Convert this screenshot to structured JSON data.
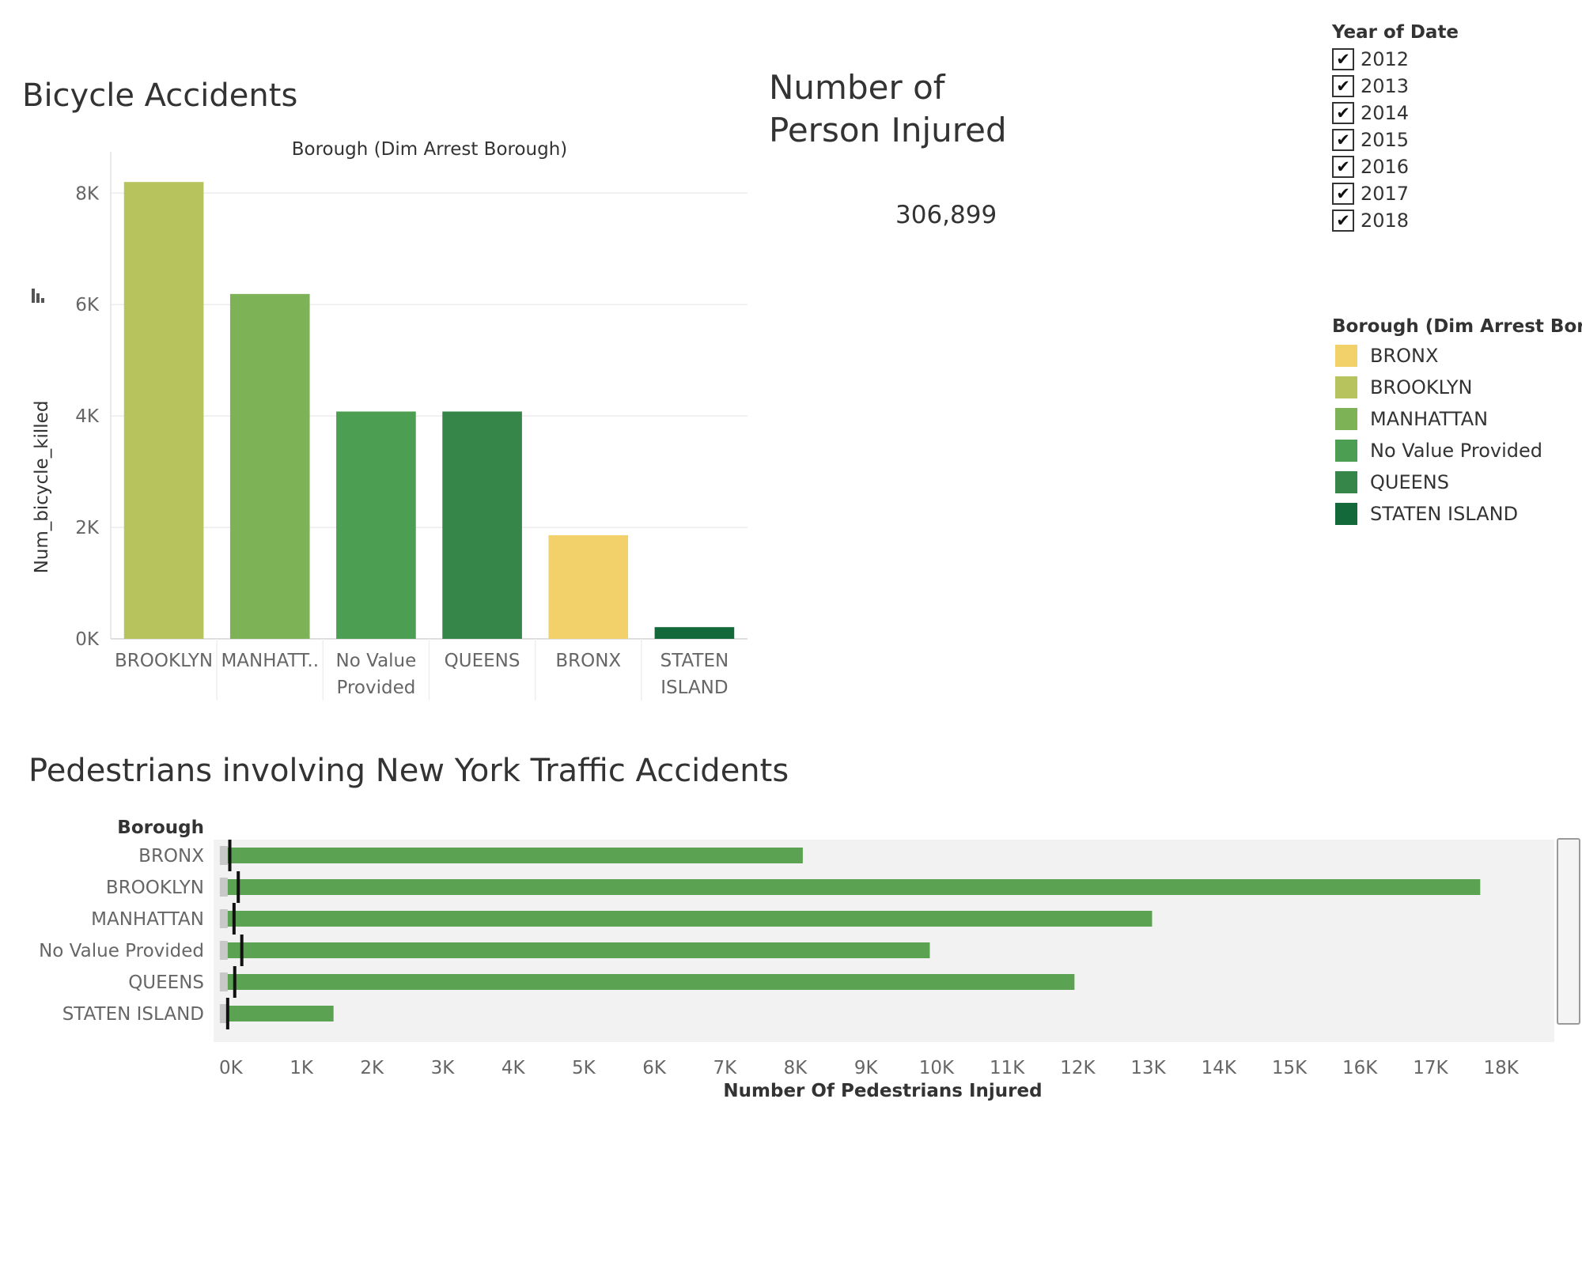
{
  "dashboard": {
    "bicycle_title": "Bicycle Accidents",
    "kpi_title_line1": "Number of",
    "kpi_title_line2": "Person Injured",
    "kpi_value": "306,899",
    "pedestrian_title": "Pedestrians involving New York Traffic Accidents"
  },
  "year_filter": {
    "title": "Year of Date",
    "check_icon": "check-icon",
    "items": [
      {
        "label": "2012",
        "checked": true
      },
      {
        "label": "2013",
        "checked": true
      },
      {
        "label": "2014",
        "checked": true
      },
      {
        "label": "2015",
        "checked": true
      },
      {
        "label": "2016",
        "checked": true
      },
      {
        "label": "2017",
        "checked": true
      },
      {
        "label": "2018",
        "checked": true
      }
    ]
  },
  "legend": {
    "title": "Borough (Dim Arrest Bor..",
    "items": [
      {
        "label": "BRONX",
        "color": "#f2d16b"
      },
      {
        "label": "BROOKLYN",
        "color": "#b7c35c"
      },
      {
        "label": "MANHATTAN",
        "color": "#7db257"
      },
      {
        "label": "No Value Provided",
        "color": "#4b9e52"
      },
      {
        "label": "QUEENS",
        "color": "#36864a"
      },
      {
        "label": "STATEN ISLAND",
        "color": "#13693a"
      }
    ]
  },
  "chart_data": [
    {
      "type": "bar",
      "title": "Bicycle Accidents",
      "column_header": "Borough (Dim Arrest Borough)",
      "ylabel": "Num_bicycle_killed",
      "sort_icon": "sort-descending-icon",
      "categories": [
        "BROOKLYN",
        "MANHATTAN",
        "No Value Provided",
        "QUEENS",
        "BRONX",
        "STATEN ISLAND"
      ],
      "category_labels": [
        [
          "BROOKLYN"
        ],
        [
          "MANHATT.."
        ],
        [
          "No Value",
          "Provided"
        ],
        [
          "QUEENS"
        ],
        [
          "BRONX"
        ],
        [
          "STATEN",
          "ISLAND"
        ]
      ],
      "values": [
        8200,
        6190,
        4080,
        4080,
        1860,
        210
      ],
      "colors": [
        "#b7c35c",
        "#7db257",
        "#4b9e52",
        "#36864a",
        "#f2d16b",
        "#13693a"
      ],
      "ylim": [
        0,
        8600
      ],
      "yticks": [
        0,
        2000,
        4000,
        6000,
        8000
      ],
      "ytick_labels": [
        "0K",
        "2K",
        "4K",
        "6K",
        "8K"
      ],
      "grid": true
    },
    {
      "type": "bar",
      "orientation": "horizontal",
      "title": "Pedestrians involving New York Traffic Accidents",
      "row_header": "Borough",
      "xlabel": "Number Of Pedestrians Injured",
      "categories": [
        "BRONX",
        "BROOKLYN",
        "MANHATTAN",
        "No Value Provided",
        "QUEENS",
        "STATEN ISLAND"
      ],
      "values": [
        8150,
        17750,
        13100,
        9950,
        12000,
        1500
      ],
      "reference_values": [
        30,
        150,
        90,
        200,
        100,
        0
      ],
      "color": "#5ba352",
      "reference_color": "#111111",
      "xlim": [
        -200,
        18800
      ],
      "xticks": [
        0,
        1000,
        2000,
        3000,
        4000,
        5000,
        6000,
        7000,
        8000,
        9000,
        10000,
        11000,
        12000,
        13000,
        14000,
        15000,
        16000,
        17000,
        18000
      ],
      "xtick_labels": [
        "0K",
        "1K",
        "2K",
        "3K",
        "4K",
        "5K",
        "6K",
        "7K",
        "8K",
        "9K",
        "10K",
        "11K",
        "12K",
        "13K",
        "14K",
        "15K",
        "16K",
        "17K",
        "18K"
      ],
      "grid": false
    }
  ]
}
